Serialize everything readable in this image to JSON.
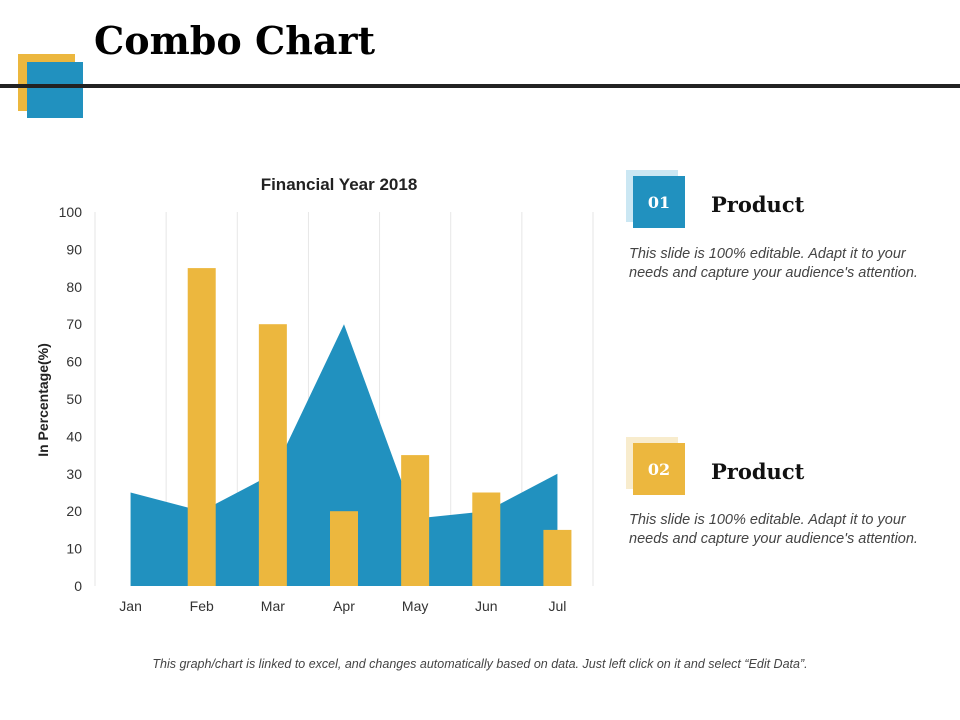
{
  "page": {
    "title": "Combo Chart",
    "footnote": "This graph/chart is linked to excel, and changes automatically based on data. Just left click on it and select “Edit Data”."
  },
  "colors": {
    "blue": "#2191bf",
    "gold": "#ecb73e",
    "light_blue": "#cbe7f3",
    "light_gold": "#f8eccd",
    "rule": "#222222"
  },
  "products": [
    {
      "number": "01",
      "title": "Product",
      "description": "This slide is 100% editable. Adapt it to your needs and capture your audience's attention.",
      "color": "#2191bf"
    },
    {
      "number": "02",
      "title": "Product",
      "description": "This slide is 100% editable. Adapt it to your needs and capture your audience's attention.",
      "color": "#ecb73e"
    }
  ],
  "chart_data": {
    "type": "bar",
    "title": "Financial Year 2018",
    "xlabel": "",
    "ylabel": "In Percentage(%)",
    "ylim": [
      0,
      100
    ],
    "yticks": [
      0,
      10,
      20,
      30,
      40,
      50,
      60,
      70,
      80,
      90,
      100
    ],
    "categories": [
      "Jan",
      "Feb",
      "Mar",
      "Apr",
      "May",
      "Jun",
      "Jul"
    ],
    "grid": "vertical",
    "series": [
      {
        "type": "area",
        "color": "#2191bf",
        "values": [
          25,
          20,
          30,
          70,
          18,
          20,
          30
        ]
      },
      {
        "type": "bar",
        "color": "#ecb73e",
        "values": [
          0,
          85,
          70,
          20,
          35,
          25,
          15
        ]
      }
    ]
  }
}
